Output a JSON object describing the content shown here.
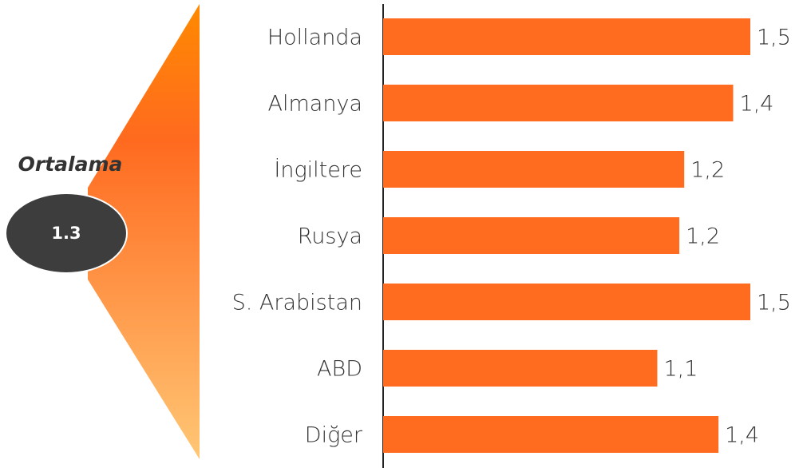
{
  "chart_data": {
    "type": "bar",
    "orientation": "horizontal",
    "categories": [
      "Hollanda",
      "Almanya",
      "İngiltere",
      "Rusya",
      "S. Arabistan",
      "ABD",
      "Diğer"
    ],
    "values": [
      1.5,
      1.43,
      1.23,
      1.21,
      1.5,
      1.12,
      1.37
    ],
    "value_labels": [
      "1,5",
      "1,4",
      "1,2",
      "1,2",
      "1,5",
      "1,1",
      "1,4"
    ],
    "color": "#ff6b1f",
    "xlim": [
      0,
      1.5
    ],
    "average_label": "Ortalama",
    "average": 1.3
  }
}
